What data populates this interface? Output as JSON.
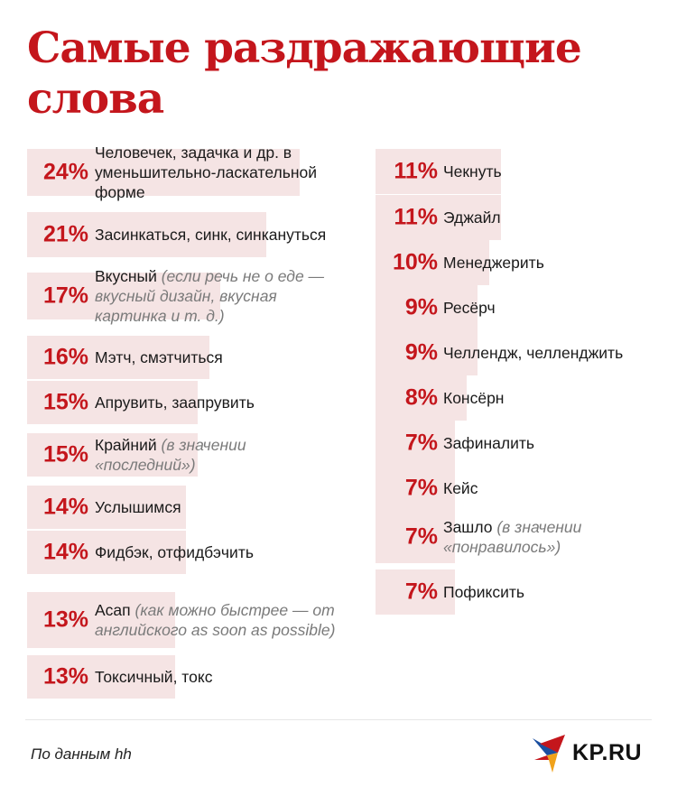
{
  "title": "Самые раздражающие слова",
  "source": "По данным hh",
  "logo_text": "KP.RU",
  "colors": {
    "accent": "#c4161c",
    "bar": "#f5e4e4",
    "note": "#7a7a7a"
  },
  "chart_data": {
    "type": "bar",
    "orientation": "horizontal",
    "title": "Самые раздражающие слова",
    "unit": "%",
    "categories": [
      "Человечек, задачка и др. в уменьшительно-ласкательной форме",
      "Засинкаться, синк, синкануться",
      "Вкусный",
      "Мэтч, смэтчиться",
      "Апрувить, заапрувить",
      "Крайний",
      "Услышимся",
      "Фидбэк, отфидбэчить",
      "Асап",
      "Токсичный, токс",
      "Чекнуть",
      "Эджайл",
      "Менеджерить",
      "Ресёрч",
      "Челлендж, челленджить",
      "Консёрн",
      "Зафиналить",
      "Кейс",
      "Зашло",
      "Пофиксить"
    ],
    "values": [
      24,
      21,
      17,
      16,
      15,
      15,
      14,
      14,
      13,
      13,
      11,
      11,
      10,
      9,
      9,
      8,
      7,
      7,
      7,
      7
    ],
    "items": [
      {
        "pct_text": "24%",
        "label": "Человечек, задачка и др. в уменьшительно-ласкательной форме",
        "note": ""
      },
      {
        "pct_text": "21%",
        "label": "Засинкаться, синк, синкануться",
        "note": ""
      },
      {
        "pct_text": "17%",
        "label": "Вкусный",
        "note": "(если речь не о еде — вкусный дизайн, вкусная картинка и т. д.)"
      },
      {
        "pct_text": "16%",
        "label": "Мэтч, смэтчиться",
        "note": ""
      },
      {
        "pct_text": "15%",
        "label": "Апрувить, заапрувить",
        "note": ""
      },
      {
        "pct_text": "15%",
        "label": "Крайний",
        "note": "(в значении «последний»)"
      },
      {
        "pct_text": "14%",
        "label": "Услышимся",
        "note": ""
      },
      {
        "pct_text": "14%",
        "label": "Фидбэк, отфидбэчить",
        "note": ""
      },
      {
        "pct_text": "13%",
        "label": "Асап",
        "note": "(как можно быстрее — от английского as soon as possible)"
      },
      {
        "pct_text": "13%",
        "label": "Токсичный, токс",
        "note": ""
      },
      {
        "pct_text": "11%",
        "label": "Чекнуть",
        "note": ""
      },
      {
        "pct_text": "11%",
        "label": "Эджайл",
        "note": ""
      },
      {
        "pct_text": "10%",
        "label": "Менеджерить",
        "note": ""
      },
      {
        "pct_text": "9%",
        "label": "Ресёрч",
        "note": ""
      },
      {
        "pct_text": "9%",
        "label": "Челлендж, челленджить",
        "note": ""
      },
      {
        "pct_text": "8%",
        "label": "Консёрн",
        "note": ""
      },
      {
        "pct_text": "7%",
        "label": "Зафиналить",
        "note": ""
      },
      {
        "pct_text": "7%",
        "label": "Кейс",
        "note": ""
      },
      {
        "pct_text": "7%",
        "label": "Зашло",
        "note": "(в значении «понравилось»)"
      },
      {
        "pct_text": "7%",
        "label": "Пофиксить",
        "note": ""
      }
    ]
  }
}
